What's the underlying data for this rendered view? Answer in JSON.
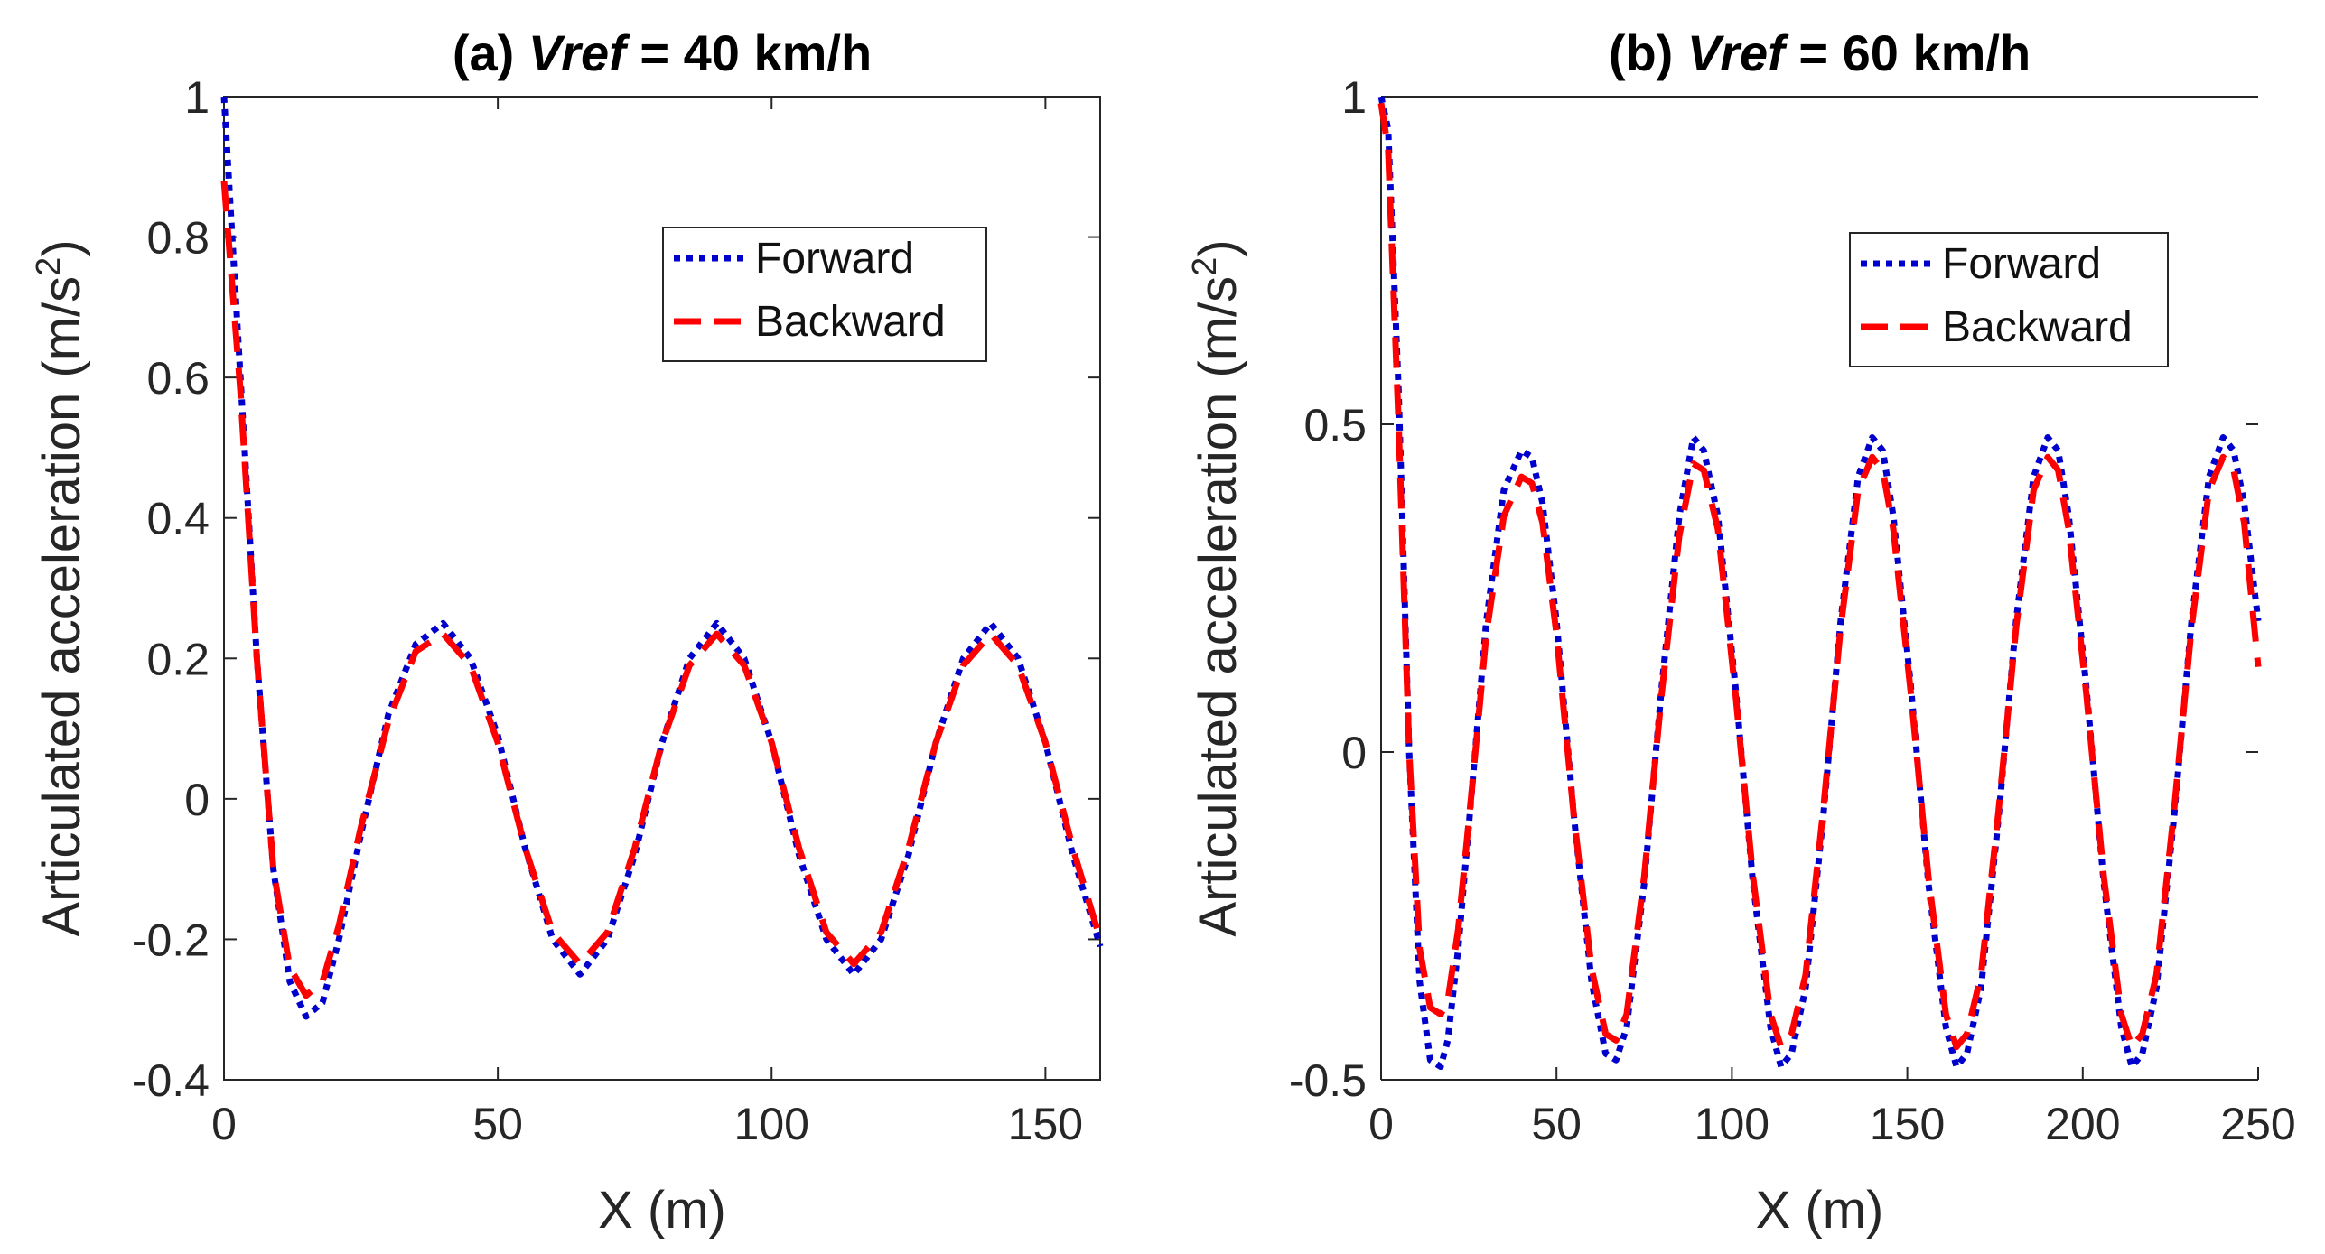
{
  "chart_data": [
    {
      "type": "line",
      "title_prefix": "(a) ",
      "title_var": "Vref",
      "title_suffix": " = 40 km/h",
      "xlabel": "X (m)",
      "ylabel": "Articulated acceleration (m/s",
      "ylabel_sup": "2",
      "ylabel_close": ")",
      "xlim": [
        0,
        160
      ],
      "ylim": [
        -0.4,
        1
      ],
      "xticks": [
        0,
        50,
        100,
        150
      ],
      "xtick_labels": [
        "0",
        "50",
        "100",
        "150"
      ],
      "yticks": [
        -0.4,
        -0.2,
        0,
        0.2,
        0.4,
        0.6,
        0.8,
        1
      ],
      "ytick_labels": [
        "-0.4",
        "-0.2",
        "0",
        "0.2",
        "0.4",
        "0.6",
        "0.8",
        "1"
      ],
      "legend_position": "top-right",
      "series": [
        {
          "name": "Forward",
          "color": "#0000CC",
          "style": "dotted",
          "x": [
            0,
            3,
            6,
            9,
            12,
            15,
            18,
            21,
            25,
            30,
            35,
            40,
            45,
            50,
            55,
            60,
            65,
            70,
            75,
            80,
            85,
            90,
            95,
            100,
            105,
            110,
            115,
            120,
            125,
            130,
            135,
            140,
            145,
            150,
            155,
            160
          ],
          "y": [
            1.0,
            0.6,
            0.2,
            -0.1,
            -0.26,
            -0.31,
            -0.29,
            -0.2,
            -0.05,
            0.12,
            0.22,
            0.25,
            0.2,
            0.09,
            -0.07,
            -0.2,
            -0.25,
            -0.2,
            -0.08,
            0.08,
            0.2,
            0.25,
            0.2,
            0.08,
            -0.08,
            -0.2,
            -0.25,
            -0.2,
            -0.08,
            0.08,
            0.2,
            0.25,
            0.2,
            0.08,
            -0.08,
            -0.21
          ]
        },
        {
          "name": "Backward",
          "color": "#FF0000",
          "style": "dashed",
          "x": [
            0,
            3,
            6,
            9,
            12,
            15,
            18,
            21,
            25,
            30,
            35,
            40,
            45,
            50,
            55,
            60,
            65,
            70,
            75,
            80,
            85,
            90,
            95,
            100,
            105,
            110,
            115,
            120,
            125,
            130,
            135,
            140,
            145,
            150,
            155,
            160
          ],
          "y": [
            0.88,
            0.58,
            0.2,
            -0.1,
            -0.24,
            -0.28,
            -0.26,
            -0.18,
            -0.04,
            0.11,
            0.21,
            0.235,
            0.19,
            0.08,
            -0.07,
            -0.19,
            -0.235,
            -0.19,
            -0.07,
            0.08,
            0.19,
            0.235,
            0.19,
            0.08,
            -0.07,
            -0.19,
            -0.235,
            -0.19,
            -0.07,
            0.08,
            0.19,
            0.235,
            0.19,
            0.08,
            -0.07,
            -0.2
          ]
        }
      ]
    },
    {
      "type": "line",
      "title_prefix": "(b) ",
      "title_var": "Vref",
      "title_suffix": " = 60 km/h",
      "xlabel": "X (m)",
      "ylabel": "Articulated acceleration (m/s",
      "ylabel_sup": "2",
      "ylabel_close": ")",
      "xlim": [
        0,
        250
      ],
      "ylim": [
        -0.5,
        1
      ],
      "xticks": [
        0,
        50,
        100,
        150,
        200,
        250
      ],
      "xtick_labels": [
        "0",
        "50",
        "100",
        "150",
        "200",
        "250"
      ],
      "yticks": [
        -0.5,
        0,
        0.5,
        1
      ],
      "ytick_labels": [
        "-0.5",
        "0",
        "0.5",
        "1"
      ],
      "legend_position": "top-right",
      "series": [
        {
          "name": "Forward",
          "color": "#0000CC",
          "style": "dotted",
          "x": [
            0,
            2,
            5,
            8,
            11,
            14,
            17,
            19,
            22,
            26,
            30,
            35,
            40,
            43,
            46,
            50,
            55,
            60,
            64,
            67,
            70,
            75,
            80,
            85,
            89,
            92,
            96,
            101,
            106,
            111,
            114,
            117,
            121,
            126,
            131,
            136,
            140,
            143,
            146,
            151,
            156,
            161,
            164,
            167,
            171,
            176,
            181,
            186,
            190,
            193,
            196,
            201,
            206,
            211,
            214,
            217,
            221,
            226,
            231,
            236,
            240,
            243,
            246,
            250
          ],
          "y": [
            1.0,
            0.95,
            0.55,
            0.0,
            -0.35,
            -0.47,
            -0.48,
            -0.44,
            -0.3,
            -0.05,
            0.2,
            0.4,
            0.46,
            0.45,
            0.38,
            0.2,
            -0.1,
            -0.35,
            -0.46,
            -0.47,
            -0.42,
            -0.2,
            0.1,
            0.36,
            0.48,
            0.46,
            0.36,
            0.1,
            -0.2,
            -0.42,
            -0.48,
            -0.46,
            -0.36,
            -0.1,
            0.2,
            0.42,
            0.48,
            0.46,
            0.36,
            0.1,
            -0.2,
            -0.42,
            -0.48,
            -0.46,
            -0.36,
            -0.1,
            0.2,
            0.42,
            0.48,
            0.46,
            0.36,
            0.1,
            -0.2,
            -0.42,
            -0.48,
            -0.46,
            -0.36,
            -0.1,
            0.2,
            0.42,
            0.48,
            0.46,
            0.38,
            0.2
          ]
        },
        {
          "name": "Backward",
          "color": "#FF0000",
          "style": "dashed",
          "x": [
            0,
            2,
            5,
            8,
            11,
            14,
            17,
            19,
            22,
            26,
            30,
            35,
            40,
            43,
            46,
            50,
            55,
            60,
            64,
            67,
            70,
            75,
            80,
            85,
            89,
            92,
            96,
            101,
            106,
            111,
            114,
            117,
            121,
            126,
            131,
            136,
            140,
            143,
            146,
            151,
            156,
            161,
            164,
            167,
            171,
            176,
            181,
            186,
            190,
            193,
            196,
            201,
            206,
            211,
            214,
            217,
            221,
            226,
            231,
            236,
            240,
            243,
            246,
            250
          ],
          "y": [
            0.99,
            0.92,
            0.5,
            0.0,
            -0.3,
            -0.39,
            -0.4,
            -0.38,
            -0.27,
            -0.05,
            0.18,
            0.36,
            0.42,
            0.41,
            0.35,
            0.18,
            -0.1,
            -0.33,
            -0.43,
            -0.44,
            -0.4,
            -0.19,
            0.09,
            0.33,
            0.44,
            0.43,
            0.34,
            0.09,
            -0.19,
            -0.4,
            -0.45,
            -0.43,
            -0.34,
            -0.09,
            0.19,
            0.4,
            0.45,
            0.43,
            0.34,
            0.09,
            -0.19,
            -0.4,
            -0.45,
            -0.43,
            -0.34,
            -0.09,
            0.19,
            0.4,
            0.45,
            0.43,
            0.34,
            0.09,
            -0.19,
            -0.4,
            -0.45,
            -0.43,
            -0.34,
            -0.09,
            0.19,
            0.4,
            0.45,
            0.43,
            0.35,
            0.13
          ]
        }
      ]
    }
  ]
}
